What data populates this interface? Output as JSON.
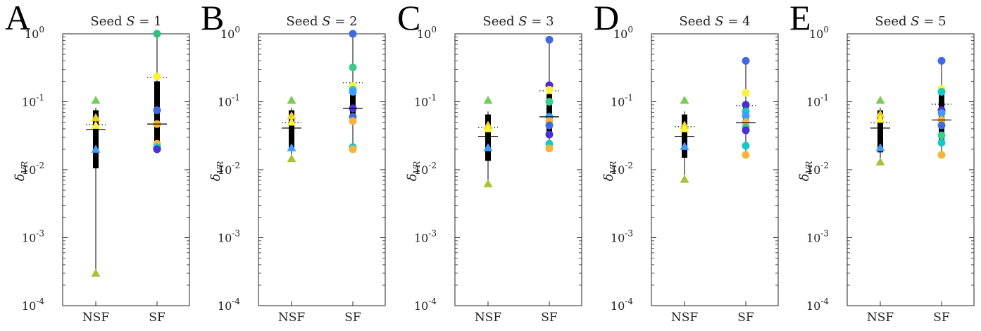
{
  "colors": {
    "axis": "#262626",
    "whisker": "#000000",
    "box": "#000000",
    "median": "#000000",
    "mean_dotted": "#000000",
    "palette": [
      "#4169E1",
      "#4B2FD0",
      "#3E9BFF",
      "#1AC6C6",
      "#3CCB8A",
      "#77CC55",
      "#A8C23A",
      "#F6D02A",
      "#F9F33A",
      "#F5B53A"
    ]
  },
  "chart_data": [
    {
      "type": "box",
      "panel_letter": "A",
      "title": "Seed S = 1",
      "title_parts": {
        "prefix": "Seed ",
        "symbol": "S",
        "suffix": " = 1"
      },
      "ylabel": "δVR",
      "ylabel_parts": {
        "main": "δ",
        "sub": "VR"
      },
      "yscale": "log",
      "ylim": [
        0.0001,
        1
      ],
      "yticks": [
        {
          "base": "10",
          "exp": "0"
        },
        {
          "base": "10",
          "exp": "-1"
        },
        {
          "base": "10",
          "exp": "-2"
        },
        {
          "base": "10",
          "exp": "-3"
        },
        {
          "base": "10",
          "exp": "-4"
        }
      ],
      "categories": [
        "NSF",
        "SF"
      ],
      "series": [
        {
          "category": "NSF",
          "marker": "triangle",
          "box": {
            "q1": 0.0105,
            "median": 0.039,
            "q3": 0.075,
            "whisker_low": 0.0003,
            "whisker_high": 0.082,
            "mean": 0.046
          },
          "points": [
            {
              "y": 0.105,
              "color": "#77CC55"
            },
            {
              "y": 0.058,
              "color": "#F5D020"
            },
            {
              "y": 0.045,
              "color": "#F9F33A"
            },
            {
              "y": 0.02,
              "color": "#3E9BFF"
            },
            {
              "y": 0.0003,
              "color": "#A8C23A"
            }
          ]
        },
        {
          "category": "SF",
          "marker": "circle",
          "box": {
            "q1": 0.022,
            "median": 0.047,
            "q3": 0.2,
            "whisker_low": 0.02,
            "whisker_high": 1.0,
            "mean": 0.23
          },
          "points": [
            {
              "y": 1.0,
              "color": "#2EC27E"
            },
            {
              "y": 0.235,
              "color": "#F9F33A"
            },
            {
              "y": 0.075,
              "color": "#4169E1"
            },
            {
              "y": 0.047,
              "color": "#F5B53A"
            },
            {
              "y": 0.024,
              "color": "#F5B53A"
            },
            {
              "y": 0.0215,
              "color": "#1AC6C6"
            },
            {
              "y": 0.02,
              "color": "#4B2FD0"
            }
          ]
        }
      ]
    },
    {
      "type": "box",
      "panel_letter": "B",
      "title": "Seed S = 2",
      "title_parts": {
        "prefix": "Seed ",
        "symbol": "S",
        "suffix": " = 2"
      },
      "ylabel": "δVR",
      "ylabel_parts": {
        "main": "δ",
        "sub": "VR"
      },
      "yscale": "log",
      "ylim": [
        0.0001,
        1
      ],
      "yticks": [
        {
          "base": "10",
          "exp": "0"
        },
        {
          "base": "10",
          "exp": "-1"
        },
        {
          "base": "10",
          "exp": "-2"
        },
        {
          "base": "10",
          "exp": "-3"
        },
        {
          "base": "10",
          "exp": "-4"
        }
      ],
      "categories": [
        "NSF",
        "SF"
      ],
      "series": [
        {
          "category": "NSF",
          "marker": "triangle",
          "box": {
            "q1": 0.019,
            "median": 0.041,
            "q3": 0.075,
            "whisker_low": 0.0145,
            "whisker_high": 0.082,
            "mean": 0.049
          },
          "points": [
            {
              "y": 0.105,
              "color": "#77CC55"
            },
            {
              "y": 0.062,
              "color": "#F5D020"
            },
            {
              "y": 0.05,
              "color": "#F9F33A"
            },
            {
              "y": 0.021,
              "color": "#3E9BFF"
            },
            {
              "y": 0.0145,
              "color": "#A8C23A"
            }
          ]
        },
        {
          "category": "SF",
          "marker": "circle",
          "box": {
            "q1": 0.05,
            "median": 0.08,
            "q3": 0.16,
            "whisker_low": 0.02,
            "whisker_high": 1.0,
            "mean": 0.19
          },
          "points": [
            {
              "y": 1.0,
              "color": "#4169E1"
            },
            {
              "y": 0.32,
              "color": "#3CCB8A"
            },
            {
              "y": 0.17,
              "color": "#F9F33A"
            },
            {
              "y": 0.15,
              "color": "#1AC6C6"
            },
            {
              "y": 0.14,
              "color": "#3E9BFF"
            },
            {
              "y": 0.08,
              "color": "#4B2FD0"
            },
            {
              "y": 0.06,
              "color": "#4169E1"
            },
            {
              "y": 0.052,
              "color": "#F5B53A"
            },
            {
              "y": 0.0215,
              "color": "#1AC6C6"
            },
            {
              "y": 0.02,
              "color": "#F5B53A"
            }
          ]
        }
      ]
    },
    {
      "type": "box",
      "panel_letter": "C",
      "title": "Seed S = 3",
      "title_parts": {
        "prefix": "Seed ",
        "symbol": "S",
        "suffix": " = 3"
      },
      "ylabel": "δVR",
      "ylabel_parts": {
        "main": "δ",
        "sub": "VR"
      },
      "yscale": "log",
      "ylim": [
        0.0001,
        1
      ],
      "yticks": [
        {
          "base": "10",
          "exp": "0"
        },
        {
          "base": "10",
          "exp": "-1"
        },
        {
          "base": "10",
          "exp": "-2"
        },
        {
          "base": "10",
          "exp": "-3"
        },
        {
          "base": "10",
          "exp": "-4"
        }
      ],
      "categories": [
        "NSF",
        "SF"
      ],
      "series": [
        {
          "category": "NSF",
          "marker": "triangle",
          "box": {
            "q1": 0.0135,
            "median": 0.031,
            "q3": 0.065,
            "whisker_low": 0.0062,
            "whisker_high": 0.072,
            "mean": 0.042
          },
          "points": [
            {
              "y": 0.105,
              "color": "#77CC55"
            },
            {
              "y": 0.045,
              "color": "#F5D020"
            },
            {
              "y": 0.04,
              "color": "#F9F33A"
            },
            {
              "y": 0.021,
              "color": "#3E9BFF"
            },
            {
              "y": 0.0062,
              "color": "#A8C23A"
            }
          ]
        },
        {
          "category": "SF",
          "marker": "circle",
          "box": {
            "q1": 0.03,
            "median": 0.06,
            "q3": 0.13,
            "whisker_low": 0.02,
            "whisker_high": 0.82,
            "mean": 0.145
          },
          "points": [
            {
              "y": 0.82,
              "color": "#4169E1"
            },
            {
              "y": 0.175,
              "color": "#4B2FD0"
            },
            {
              "y": 0.15,
              "color": "#F9F33A"
            },
            {
              "y": 0.1,
              "color": "#3CCB8A"
            },
            {
              "y": 0.06,
              "color": "#3E9BFF"
            },
            {
              "y": 0.052,
              "color": "#F5B53A"
            },
            {
              "y": 0.045,
              "color": "#4169E1"
            },
            {
              "y": 0.033,
              "color": "#4B2FD0"
            },
            {
              "y": 0.024,
              "color": "#1AC6C6"
            },
            {
              "y": 0.0205,
              "color": "#F5B53A"
            }
          ]
        }
      ]
    },
    {
      "type": "box",
      "panel_letter": "D",
      "title": "Seed S = 4",
      "title_parts": {
        "prefix": "Seed ",
        "symbol": "S",
        "suffix": " = 4"
      },
      "ylabel": "δVR",
      "ylabel_parts": {
        "main": "δ",
        "sub": "VR"
      },
      "yscale": "log",
      "ylim": [
        0.0001,
        1
      ],
      "yticks": [
        {
          "base": "10",
          "exp": "0"
        },
        {
          "base": "10",
          "exp": "-1"
        },
        {
          "base": "10",
          "exp": "-2"
        },
        {
          "base": "10",
          "exp": "-3"
        },
        {
          "base": "10",
          "exp": "-4"
        }
      ],
      "categories": [
        "NSF",
        "SF"
      ],
      "series": [
        {
          "category": "NSF",
          "marker": "triangle",
          "box": {
            "q1": 0.015,
            "median": 0.031,
            "q3": 0.065,
            "whisker_low": 0.0072,
            "whisker_high": 0.072,
            "mean": 0.043
          },
          "points": [
            {
              "y": 0.105,
              "color": "#77CC55"
            },
            {
              "y": 0.045,
              "color": "#F5D020"
            },
            {
              "y": 0.04,
              "color": "#F9F33A"
            },
            {
              "y": 0.022,
              "color": "#3E9BFF"
            },
            {
              "y": 0.0072,
              "color": "#A8C23A"
            }
          ]
        },
        {
          "category": "SF",
          "marker": "circle",
          "box": {
            "q1": 0.036,
            "median": 0.049,
            "q3": 0.085,
            "whisker_low": 0.0165,
            "whisker_high": 0.4,
            "mean": 0.088
          },
          "points": [
            {
              "y": 0.4,
              "color": "#4169E1"
            },
            {
              "y": 0.135,
              "color": "#F9F33A"
            },
            {
              "y": 0.09,
              "color": "#4B2FD0"
            },
            {
              "y": 0.072,
              "color": "#1AC6C6"
            },
            {
              "y": 0.062,
              "color": "#3E9BFF"
            },
            {
              "y": 0.05,
              "color": "#F5B53A"
            },
            {
              "y": 0.042,
              "color": "#3CCB8A"
            },
            {
              "y": 0.038,
              "color": "#4B2FD0"
            },
            {
              "y": 0.0225,
              "color": "#1AC6C6"
            },
            {
              "y": 0.0165,
              "color": "#F5B53A"
            }
          ]
        }
      ]
    },
    {
      "type": "box",
      "panel_letter": "E",
      "title": "Seed S = 5",
      "title_parts": {
        "prefix": "Seed ",
        "symbol": "S",
        "suffix": " = 5"
      },
      "ylabel": "δVR",
      "ylabel_parts": {
        "main": "δ",
        "sub": "VR"
      },
      "yscale": "log",
      "ylim": [
        0.0001,
        1
      ],
      "yticks": [
        {
          "base": "10",
          "exp": "0"
        },
        {
          "base": "10",
          "exp": "-1"
        },
        {
          "base": "10",
          "exp": "-2"
        },
        {
          "base": "10",
          "exp": "-3"
        },
        {
          "base": "10",
          "exp": "-4"
        }
      ],
      "categories": [
        "NSF",
        "SF"
      ],
      "series": [
        {
          "category": "NSF",
          "marker": "triangle",
          "box": {
            "q1": 0.018,
            "median": 0.041,
            "q3": 0.075,
            "whisker_low": 0.013,
            "whisker_high": 0.082,
            "mean": 0.049
          },
          "points": [
            {
              "y": 0.105,
              "color": "#77CC55"
            },
            {
              "y": 0.065,
              "color": "#F5D020"
            },
            {
              "y": 0.055,
              "color": "#F9F33A"
            },
            {
              "y": 0.021,
              "color": "#3E9BFF"
            },
            {
              "y": 0.013,
              "color": "#A8C23A"
            }
          ]
        },
        {
          "category": "SF",
          "marker": "circle",
          "box": {
            "q1": 0.025,
            "median": 0.054,
            "q3": 0.13,
            "whisker_low": 0.0165,
            "whisker_high": 0.4,
            "mean": 0.092
          },
          "points": [
            {
              "y": 0.4,
              "color": "#4169E1"
            },
            {
              "y": 0.155,
              "color": "#F9F33A"
            },
            {
              "y": 0.14,
              "color": "#1AC6C6"
            },
            {
              "y": 0.075,
              "color": "#4B2FD0"
            },
            {
              "y": 0.068,
              "color": "#3E9BFF"
            },
            {
              "y": 0.054,
              "color": "#F5B53A"
            },
            {
              "y": 0.045,
              "color": "#4169E1"
            },
            {
              "y": 0.032,
              "color": "#3CCB8A"
            },
            {
              "y": 0.025,
              "color": "#1AC6C6"
            },
            {
              "y": 0.0165,
              "color": "#F5B53A"
            }
          ]
        }
      ]
    }
  ]
}
